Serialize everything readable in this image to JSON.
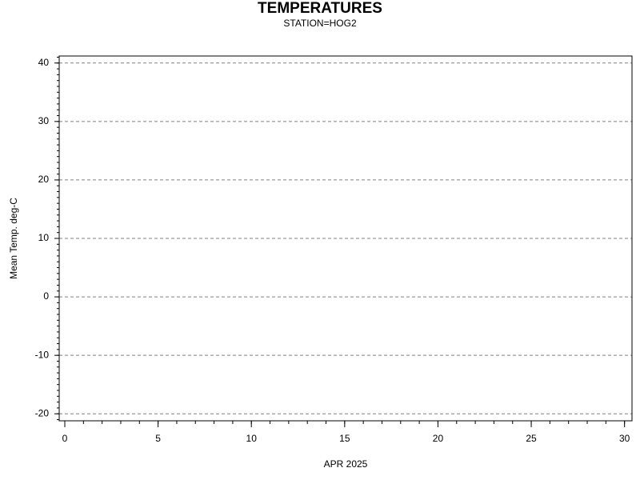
{
  "chart_data": {
    "type": "line",
    "title": "TEMPERATURES",
    "subtitle": "STATION=HOG2",
    "xlabel": "APR 2025",
    "ylabel": "Mean Temp. deg-C",
    "xlim": [
      -0.3,
      30.4
    ],
    "xticks": [
      0,
      5,
      10,
      15,
      20,
      25,
      30
    ],
    "ylim": [
      -21.2,
      41.2
    ],
    "yticks": [
      -20,
      -10,
      0,
      10,
      20,
      30,
      40
    ],
    "x_minor_step": 1,
    "y_minor_step": 1,
    "grid": true,
    "grid_color": "#808080"
  }
}
